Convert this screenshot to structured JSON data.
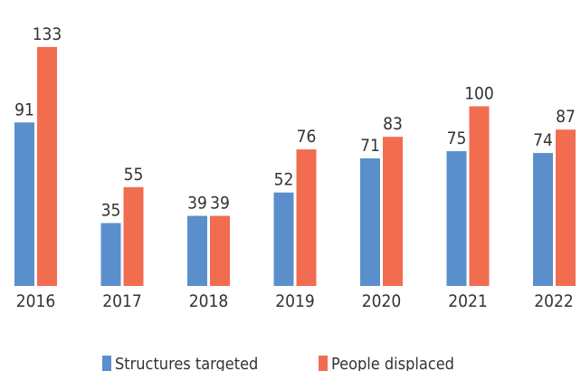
{
  "chart_data": {
    "type": "bar",
    "title": "",
    "xlabel": "",
    "ylabel": "",
    "categories": [
      "2016",
      "2017",
      "2018",
      "2019",
      "2020",
      "2021",
      "2022"
    ],
    "series": [
      {
        "name": "Structures targeted",
        "values": [
          91,
          35,
          39,
          52,
          71,
          75,
          74
        ],
        "color": "#5b8fcb"
      },
      {
        "name": "People displaced",
        "values": [
          133,
          55,
          39,
          76,
          83,
          100,
          87
        ],
        "color": "#f26c50"
      }
    ],
    "ylim": [
      0,
      140
    ],
    "grid": false,
    "data_labels": true,
    "legend_position": "bottom"
  }
}
